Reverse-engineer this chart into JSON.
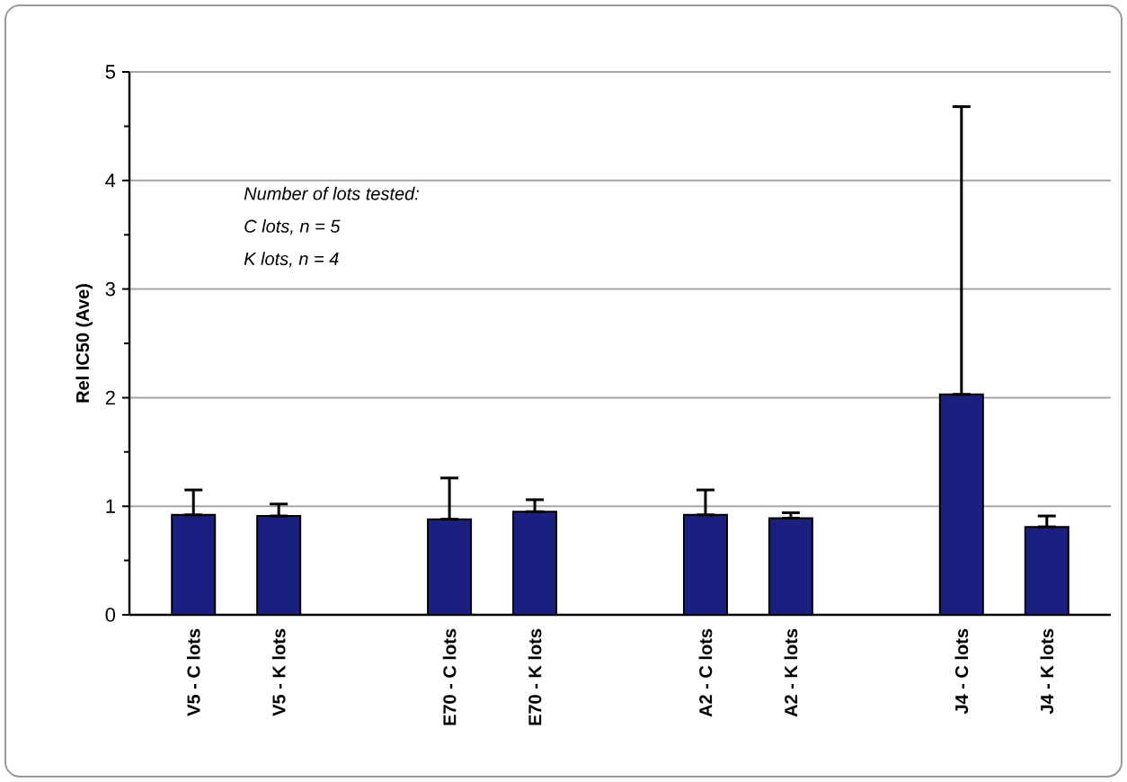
{
  "chart_data": {
    "type": "bar",
    "ylabel": "Rel IC50 (Ave)",
    "categories": [
      "V5 - C lots",
      "V5 - K lots",
      null,
      "E70 - C lots",
      "E70 - K lots",
      null,
      "A2 - C lots",
      "A2 - K lots",
      null,
      "J4 - C lots",
      "J4 - K lots"
    ],
    "values": [
      0.92,
      0.91,
      null,
      0.88,
      0.95,
      null,
      0.92,
      0.89,
      null,
      2.03,
      0.81
    ],
    "errors": [
      [
        0.92,
        1.15
      ],
      [
        0.91,
        1.02
      ],
      null,
      [
        0.88,
        1.26
      ],
      [
        0.95,
        1.06
      ],
      null,
      [
        0.92,
        1.15
      ],
      [
        0.89,
        0.94
      ],
      null,
      [
        2.03,
        4.68
      ],
      [
        0.81,
        0.91
      ]
    ],
    "color": "#1a1f80",
    "ylim": [
      0,
      5
    ],
    "yticks": [
      0,
      {
        "value": 0.5,
        "label": null
      },
      1,
      {
        "value": 1.5,
        "label": null
      },
      2,
      {
        "value": 2.5,
        "label": null
      },
      3,
      {
        "value": 3.5,
        "label": null
      },
      4,
      {
        "value": 4.5,
        "label": null
      },
      5
    ],
    "grid": "y",
    "annotations": [
      "Number of lots tested:",
      "C lots, n = 5",
      "K lots, n = 4"
    ]
  }
}
